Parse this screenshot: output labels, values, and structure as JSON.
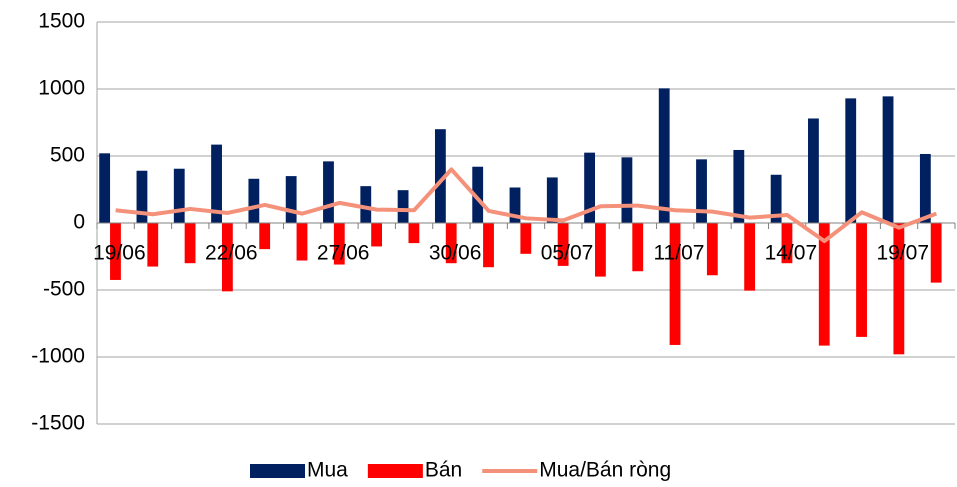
{
  "chart_data": {
    "type": "bar",
    "categories": [
      "19/06",
      null,
      null,
      "22/06",
      null,
      null,
      "27/06",
      null,
      null,
      "30/06",
      null,
      null,
      "05/07",
      null,
      null,
      "11/07",
      null,
      null,
      "14/07",
      null,
      null,
      "19/07",
      null
    ],
    "series": [
      {
        "name": "Mua",
        "type": "bar",
        "color": "#002060",
        "values": [
          520,
          390,
          405,
          585,
          330,
          350,
          460,
          275,
          245,
          700,
          420,
          265,
          340,
          525,
          490,
          1005,
          475,
          545,
          360,
          780,
          930,
          945,
          515
        ]
      },
      {
        "name": "Bán",
        "type": "bar",
        "color": "#ff0000",
        "values": [
          -425,
          -325,
          -300,
          -510,
          -195,
          -280,
          -310,
          -175,
          -150,
          -300,
          -330,
          -230,
          -320,
          -400,
          -360,
          -910,
          -390,
          -505,
          -300,
          -915,
          -850,
          -980,
          -445
        ]
      },
      {
        "name": "Mua/Bán ròng",
        "type": "line",
        "color": "#f4917a",
        "values": [
          95,
          65,
          105,
          75,
          135,
          70,
          150,
          100,
          95,
          400,
          90,
          35,
          20,
          125,
          130,
          95,
          85,
          40,
          60,
          -135,
          80,
          -35,
          70
        ]
      }
    ],
    "ylim": [
      -1500,
      1500
    ],
    "yticks": [
      -1500,
      -1000,
      -500,
      0,
      500,
      1000,
      1500
    ],
    "grid": true,
    "legend": "bottom"
  }
}
